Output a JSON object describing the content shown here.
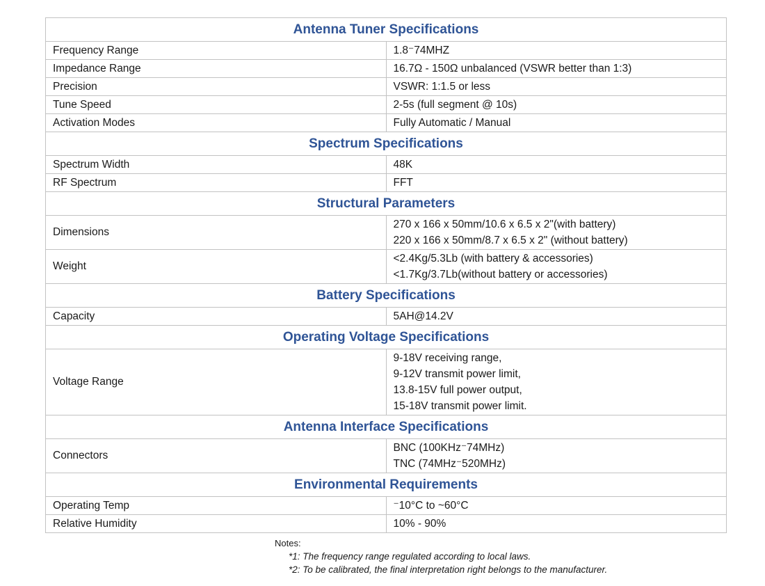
{
  "colors": {
    "section_title_blue": "#2F5496",
    "border_gray": "#c2c2c2",
    "body_text": "#1a1a1a"
  },
  "table": {
    "sections": [
      {
        "title": "Antenna Tuner Specifications",
        "rows": [
          {
            "label": "Frequency Range",
            "lines": [
              "1.8⁻74MHZ"
            ]
          },
          {
            "label": "Impedance Range",
            "lines": [
              "16.7Ω - 150Ω unbalanced (VSWR better than 1:3)"
            ]
          },
          {
            "label": "Precision",
            "lines": [
              "VSWR: 1:1.5 or less"
            ]
          },
          {
            "label": "Tune Speed",
            "lines": [
              "2-5s (full segment @ 10s)"
            ]
          },
          {
            "label": "Activation Modes",
            "lines": [
              "Fully Automatic / Manual"
            ]
          }
        ]
      },
      {
        "title": "Spectrum Specifications",
        "rows": [
          {
            "label": "Spectrum Width",
            "lines": [
              "48K"
            ]
          },
          {
            "label": "RF Spectrum",
            "lines": [
              "FFT"
            ]
          }
        ]
      },
      {
        "title": "Structural Parameters",
        "rows": [
          {
            "label": "Dimensions",
            "lines": [
              "270 x 166 x 50mm/10.6 x 6.5 x 2\"(with battery)",
              "220 x 166 x 50mm/8.7 x 6.5 x 2\" (without battery)"
            ]
          },
          {
            "label": "Weight",
            "lines": [
              "<2.4Kg/5.3Lb (with battery & accessories)",
              "<1.7Kg/3.7Lb(without battery or accessories)"
            ]
          }
        ]
      },
      {
        "title": "Battery Specifications",
        "rows": [
          {
            "label": "Capacity",
            "lines": [
              "5AH@14.2V"
            ]
          }
        ]
      },
      {
        "title": "Operating Voltage Specifications",
        "rows": [
          {
            "label": "Voltage Range",
            "lines": [
              "9-18V receiving range,",
              "9-12V transmit power limit,",
              "13.8-15V full power output,",
              "15-18V transmit power limit."
            ]
          }
        ]
      },
      {
        "title": "Antenna Interface Specifications",
        "rows": [
          {
            "label": "Connectors",
            "lines": [
              "BNC (100KHz⁻74MHz)",
              "TNC (74MHz⁻520MHz)"
            ]
          }
        ]
      },
      {
        "title": "Environmental Requirements",
        "rows": [
          {
            "label": "Operating Temp",
            "lines": [
              "⁻10°C to ~60°C"
            ]
          },
          {
            "label": "Relative Humidity",
            "lines": [
              "10% - 90%"
            ]
          }
        ]
      }
    ]
  },
  "notes": {
    "heading": "Notes:",
    "items": [
      "*1: The frequency range regulated according to local laws.",
      "*2: To be calibrated, the final interpretation right belongs to the manufacturer."
    ]
  }
}
